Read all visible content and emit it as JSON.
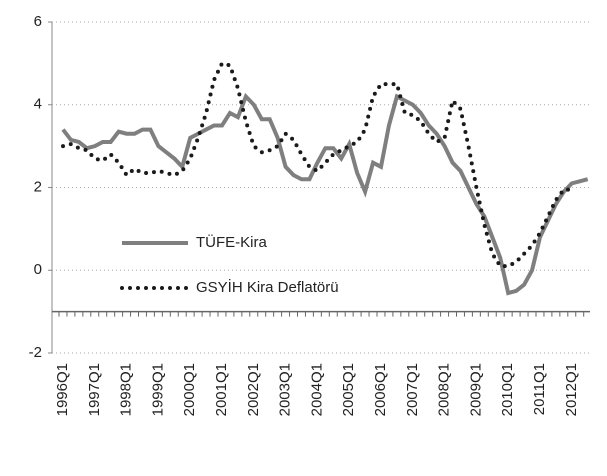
{
  "chart_data": {
    "type": "line",
    "categories": [
      "1996Q1",
      null,
      null,
      null,
      "1997Q1",
      null,
      null,
      null,
      "1998Q1",
      null,
      null,
      null,
      "1999Q1",
      null,
      null,
      null,
      "2000Q1",
      null,
      null,
      null,
      "2001Q1",
      null,
      null,
      null,
      "2002Q1",
      null,
      null,
      null,
      "2003Q1",
      null,
      null,
      null,
      "2004Q1",
      null,
      null,
      null,
      "2005Q1",
      null,
      null,
      null,
      "2006Q1",
      null,
      null,
      null,
      "2007Q1",
      null,
      null,
      null,
      "2008Q1",
      null,
      null,
      null,
      "2009Q1",
      null,
      null,
      null,
      "2010Q1",
      null,
      null,
      null,
      "2011Q1",
      null,
      null,
      null,
      "2012Q1",
      null,
      null
    ],
    "series": [
      {
        "name": "TÜFE-Kira",
        "color": "#7f7f7f",
        "style": "solid",
        "values": [
          3.4,
          3.15,
          3.1,
          2.95,
          3.0,
          3.1,
          3.1,
          3.35,
          3.3,
          3.3,
          3.4,
          3.4,
          3.0,
          2.85,
          2.7,
          2.5,
          3.2,
          3.3,
          3.4,
          3.5,
          3.5,
          3.8,
          3.7,
          4.2,
          4.0,
          3.65,
          3.65,
          3.2,
          2.5,
          2.3,
          2.2,
          2.2,
          2.6,
          2.95,
          2.95,
          2.7,
          3.05,
          2.35,
          1.9,
          2.6,
          2.5,
          3.5,
          4.2,
          4.1,
          4.0,
          3.8,
          3.5,
          3.3,
          3.0,
          2.6,
          2.4,
          2.0,
          1.6,
          1.3,
          0.8,
          0.3,
          -0.55,
          -0.5,
          -0.35,
          0.0,
          0.8,
          1.2,
          1.6,
          1.9,
          2.1,
          2.15,
          2.2
        ]
      },
      {
        "name": "GSYİH Kira Deflatörü",
        "color": "#1a1a1a",
        "style": "dotted",
        "values": [
          3.0,
          3.05,
          2.95,
          2.9,
          2.7,
          2.65,
          2.8,
          2.6,
          2.3,
          2.45,
          2.35,
          2.35,
          2.4,
          2.35,
          2.3,
          2.4,
          2.7,
          3.2,
          3.8,
          4.6,
          5.0,
          4.95,
          4.4,
          3.6,
          3.0,
          2.85,
          2.9,
          3.0,
          3.3,
          3.15,
          2.8,
          2.5,
          2.4,
          2.6,
          2.8,
          2.9,
          3.0,
          3.1,
          3.4,
          4.2,
          4.5,
          4.5,
          4.5,
          3.8,
          3.75,
          3.6,
          3.3,
          3.1,
          3.2,
          4.1,
          3.9,
          3.0,
          2.0,
          1.1,
          0.4,
          0.1,
          0.1,
          0.2,
          0.4,
          0.6,
          0.9,
          1.3,
          1.7,
          1.95,
          1.95,
          null,
          null
        ]
      }
    ],
    "ylim": [
      -2,
      6
    ],
    "yticks": [
      -2,
      0,
      2,
      4,
      6
    ],
    "grid": true,
    "x_axis_at": -1
  }
}
